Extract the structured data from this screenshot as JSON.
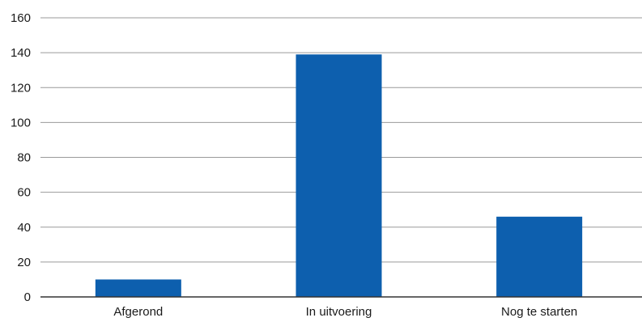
{
  "chart_data": {
    "type": "bar",
    "categories": [
      "Afgerond",
      "In uitvoering",
      "Nog te starten"
    ],
    "values": [
      10,
      139,
      46
    ],
    "ylim": [
      0,
      160
    ],
    "yticks": [
      "0",
      "20",
      "40",
      "60",
      "80",
      "100",
      "120",
      "140",
      "160"
    ],
    "grid": true,
    "legend": "none",
    "title": "",
    "xlabel": "",
    "ylabel": "",
    "bar_color": "#0d5fae",
    "grid_color": "#9a9a9a",
    "axis_color": "#333333"
  }
}
